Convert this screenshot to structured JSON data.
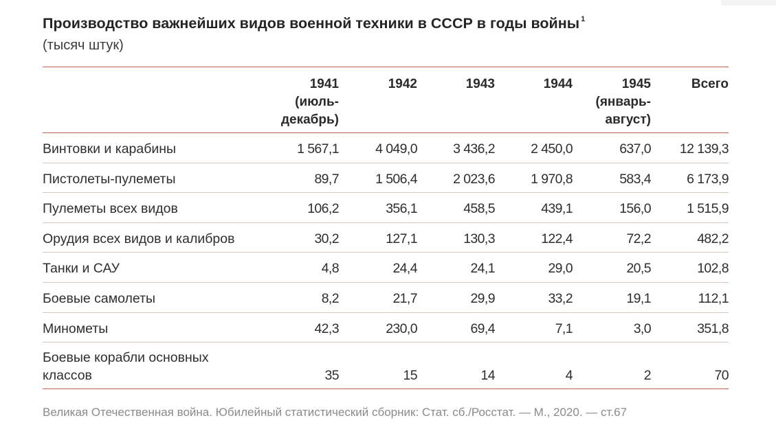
{
  "title": "Производство важнейших видов военной техники в СССР в годы войны",
  "footnote_mark": "1",
  "subtitle": "(тысяч штук)",
  "columns": [
    {
      "line1": "1941",
      "line2": "(июль-",
      "line3": "декабрь)"
    },
    {
      "line1": "1942",
      "line2": "",
      "line3": ""
    },
    {
      "line1": "1943",
      "line2": "",
      "line3": ""
    },
    {
      "line1": "1944",
      "line2": "",
      "line3": ""
    },
    {
      "line1": "1945",
      "line2": "(январь-",
      "line3": "август)"
    },
    {
      "line1": "Всего",
      "line2": "",
      "line3": ""
    }
  ],
  "rows": [
    {
      "label": "Винтовки и карабины",
      "label2": "",
      "values": [
        "1 567,1",
        "4 049,0",
        "3 436,2",
        "2 450,0",
        "637,0",
        "12 139,3"
      ]
    },
    {
      "label": "Пистолеты-пулеметы",
      "label2": "",
      "values": [
        "89,7",
        "1 506,4",
        "2 023,6",
        "1 970,8",
        "583,4",
        "6 173,9"
      ]
    },
    {
      "label": "Пулеметы всех видов",
      "label2": "",
      "values": [
        "106,2",
        "356,1",
        "458,5",
        "439,1",
        "156,0",
        "1 515,9"
      ]
    },
    {
      "label": "Орудия всех видов и калибров",
      "label2": "",
      "values": [
        "30,2",
        "127,1",
        "130,3",
        "122,4",
        "72,2",
        "482,2"
      ]
    },
    {
      "label": "Танки и САУ",
      "label2": "",
      "values": [
        "4,8",
        "24,4",
        "24,1",
        "29,0",
        "20,5",
        "102,8"
      ]
    },
    {
      "label": "Боевые самолеты",
      "label2": "",
      "values": [
        "8,2",
        "21,7",
        "29,9",
        "33,2",
        "19,1",
        "112,1"
      ]
    },
    {
      "label": "Минометы",
      "label2": "",
      "values": [
        "42,3",
        "230,0",
        "69,4",
        "7,1",
        "3,0",
        "351,8"
      ]
    },
    {
      "label": "Боевые корабли основных",
      "label2": "классов",
      "values": [
        "35",
        "15",
        "14",
        "4",
        "2",
        "70"
      ]
    }
  ],
  "source": "Великая Отечественная война. Юбилейный статистический сборник: Стат. сб./Росстат. — М., 2020. —  ст.67",
  "colors": {
    "rule_accent": "#b5614a",
    "rule_thin": "#d2c7bf",
    "source_text": "#8a8a8a"
  }
}
